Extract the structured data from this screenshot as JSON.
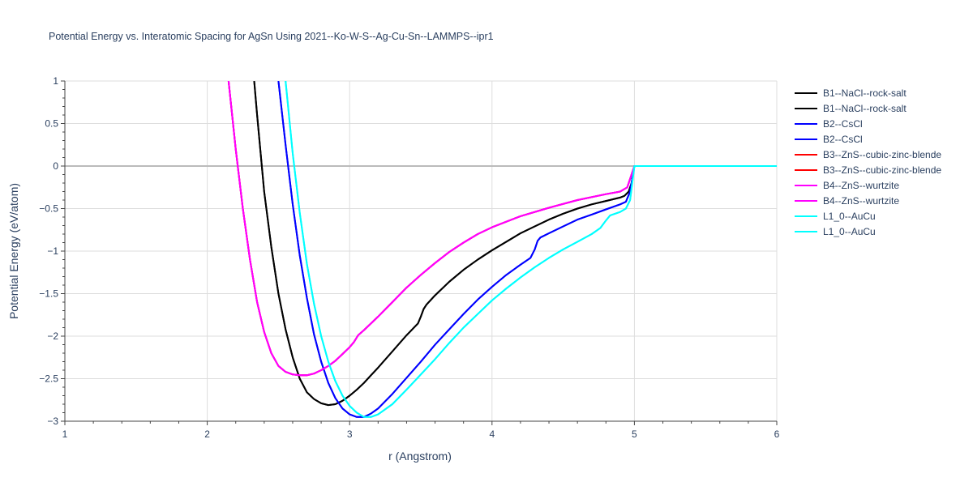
{
  "chart_data": {
    "type": "line",
    "title": "Potential Energy vs. Interatomic Spacing for AgSn Using 2021--Ko-W-S--Ag-Cu-Sn--LAMMPS--ipr1",
    "xlabel": "r (Angstrom)",
    "ylabel": "Potential Energy (eV/atom)",
    "xlim": [
      1,
      6
    ],
    "ylim": [
      -3,
      1
    ],
    "xticks": [
      1,
      2,
      3,
      4,
      5,
      6
    ],
    "yticks": [
      1,
      0.5,
      0,
      -0.5,
      -1,
      -1.5,
      -2,
      -2.5,
      -3
    ],
    "xtick_labels": [
      "1",
      "2",
      "3",
      "4",
      "5",
      "6"
    ],
    "ytick_labels": [
      "1",
      "0.5",
      "0",
      "−0.5",
      "−1",
      "−1.5",
      "−2",
      "−2.5",
      "−3"
    ],
    "grid": true,
    "legend_position": "right",
    "series": [
      {
        "name": "B1--NaCl--rock-salt",
        "color": "#000000",
        "x": [
          2.33,
          2.35,
          2.4,
          2.45,
          2.5,
          2.55,
          2.6,
          2.65,
          2.7,
          2.75,
          2.8,
          2.85,
          2.9,
          2.95,
          3.0,
          3.05,
          3.1,
          3.15,
          3.2,
          3.3,
          3.4,
          3.48,
          3.5,
          3.52,
          3.54,
          3.6,
          3.7,
          3.8,
          3.9,
          4.0,
          4.1,
          4.2,
          4.3,
          4.4,
          4.5,
          4.6,
          4.7,
          4.8,
          4.9,
          4.93,
          4.96,
          4.98,
          5.0,
          6.0
        ],
        "y": [
          1.0,
          0.6,
          -0.3,
          -0.95,
          -1.5,
          -1.92,
          -2.25,
          -2.5,
          -2.66,
          -2.74,
          -2.79,
          -2.81,
          -2.8,
          -2.76,
          -2.7,
          -2.63,
          -2.55,
          -2.46,
          -2.37,
          -2.18,
          -1.99,
          -1.85,
          -1.77,
          -1.68,
          -1.63,
          -1.52,
          -1.36,
          -1.22,
          -1.1,
          -0.99,
          -0.89,
          -0.79,
          -0.71,
          -0.63,
          -0.56,
          -0.5,
          -0.45,
          -0.41,
          -0.37,
          -0.35,
          -0.3,
          -0.2,
          0.0,
          0.0
        ]
      },
      {
        "name": "B1--NaCl--rock-salt",
        "color": "#000000",
        "x": [
          2.33,
          2.35,
          2.4,
          2.45,
          2.5,
          2.55,
          2.6,
          2.65,
          2.7,
          2.75,
          2.8,
          2.85,
          2.9,
          2.95,
          3.0,
          3.05,
          3.1,
          3.15,
          3.2,
          3.3,
          3.4,
          3.48,
          3.5,
          3.52,
          3.54,
          3.6,
          3.7,
          3.8,
          3.9,
          4.0,
          4.1,
          4.2,
          4.3,
          4.4,
          4.5,
          4.6,
          4.7,
          4.8,
          4.9,
          4.93,
          4.96,
          4.98,
          5.0,
          6.0
        ],
        "y": [
          1.0,
          0.6,
          -0.3,
          -0.95,
          -1.5,
          -1.92,
          -2.25,
          -2.5,
          -2.66,
          -2.74,
          -2.79,
          -2.81,
          -2.8,
          -2.76,
          -2.7,
          -2.63,
          -2.55,
          -2.46,
          -2.37,
          -2.18,
          -1.99,
          -1.85,
          -1.77,
          -1.68,
          -1.63,
          -1.52,
          -1.36,
          -1.22,
          -1.1,
          -0.99,
          -0.89,
          -0.79,
          -0.71,
          -0.63,
          -0.56,
          -0.5,
          -0.45,
          -0.41,
          -0.37,
          -0.35,
          -0.3,
          -0.2,
          0.0,
          0.0
        ]
      },
      {
        "name": "B2--CsCl",
        "color": "#0000ff",
        "x": [
          2.5,
          2.55,
          2.6,
          2.65,
          2.7,
          2.75,
          2.8,
          2.85,
          2.9,
          2.95,
          3.0,
          3.05,
          3.1,
          3.15,
          3.2,
          3.3,
          3.4,
          3.5,
          3.6,
          3.7,
          3.8,
          3.9,
          4.0,
          4.1,
          4.2,
          4.27,
          4.3,
          4.32,
          4.34,
          4.4,
          4.5,
          4.6,
          4.7,
          4.8,
          4.9,
          4.94,
          4.97,
          5.0,
          6.0
        ],
        "y": [
          1.0,
          0.25,
          -0.45,
          -1.05,
          -1.55,
          -1.98,
          -2.3,
          -2.55,
          -2.73,
          -2.85,
          -2.92,
          -2.95,
          -2.95,
          -2.91,
          -2.85,
          -2.68,
          -2.49,
          -2.3,
          -2.1,
          -1.92,
          -1.74,
          -1.57,
          -1.42,
          -1.28,
          -1.16,
          -1.08,
          -0.98,
          -0.88,
          -0.84,
          -0.79,
          -0.71,
          -0.63,
          -0.57,
          -0.51,
          -0.45,
          -0.42,
          -0.3,
          0.0,
          0.0
        ]
      },
      {
        "name": "B2--CsCl",
        "color": "#0000ff",
        "x": [
          2.5,
          2.55,
          2.6,
          2.65,
          2.7,
          2.75,
          2.8,
          2.85,
          2.9,
          2.95,
          3.0,
          3.05,
          3.1,
          3.15,
          3.2,
          3.3,
          3.4,
          3.5,
          3.6,
          3.7,
          3.8,
          3.9,
          4.0,
          4.1,
          4.2,
          4.27,
          4.3,
          4.32,
          4.34,
          4.4,
          4.5,
          4.6,
          4.7,
          4.8,
          4.9,
          4.94,
          4.97,
          5.0,
          6.0
        ],
        "y": [
          1.0,
          0.25,
          -0.45,
          -1.05,
          -1.55,
          -1.98,
          -2.3,
          -2.55,
          -2.73,
          -2.85,
          -2.92,
          -2.95,
          -2.95,
          -2.91,
          -2.85,
          -2.68,
          -2.49,
          -2.3,
          -2.1,
          -1.92,
          -1.74,
          -1.57,
          -1.42,
          -1.28,
          -1.16,
          -1.08,
          -0.98,
          -0.88,
          -0.84,
          -0.79,
          -0.71,
          -0.63,
          -0.57,
          -0.51,
          -0.45,
          -0.42,
          -0.3,
          0.0,
          0.0
        ]
      },
      {
        "name": "B3--ZnS--cubic-zinc-blende",
        "color": "#ff0000",
        "x": [
          2.15,
          2.2,
          2.25,
          2.3,
          2.35,
          2.4,
          2.45,
          2.5,
          2.55,
          2.6,
          2.65,
          2.7,
          2.75,
          2.8,
          2.85,
          2.9,
          2.95,
          3.0,
          3.03,
          3.06,
          3.1,
          3.2,
          3.3,
          3.4,
          3.5,
          3.6,
          3.7,
          3.8,
          3.9,
          4.0,
          4.2,
          4.4,
          4.6,
          4.8,
          4.9,
          4.95,
          5.0,
          6.0
        ],
        "y": [
          1.0,
          0.2,
          -0.5,
          -1.1,
          -1.6,
          -1.95,
          -2.2,
          -2.35,
          -2.42,
          -2.45,
          -2.46,
          -2.46,
          -2.44,
          -2.4,
          -2.35,
          -2.29,
          -2.21,
          -2.13,
          -2.07,
          -1.99,
          -1.93,
          -1.77,
          -1.6,
          -1.43,
          -1.28,
          -1.14,
          -1.01,
          -0.9,
          -0.8,
          -0.72,
          -0.59,
          -0.49,
          -0.4,
          -0.33,
          -0.3,
          -0.25,
          0.0,
          0.0
        ]
      },
      {
        "name": "B3--ZnS--cubic-zinc-blende",
        "color": "#ff0000",
        "x": [
          2.15,
          2.2,
          2.25,
          2.3,
          2.35,
          2.4,
          2.45,
          2.5,
          2.55,
          2.6,
          2.65,
          2.7,
          2.75,
          2.8,
          2.85,
          2.9,
          2.95,
          3.0,
          3.03,
          3.06,
          3.1,
          3.2,
          3.3,
          3.4,
          3.5,
          3.6,
          3.7,
          3.8,
          3.9,
          4.0,
          4.2,
          4.4,
          4.6,
          4.8,
          4.9,
          4.95,
          5.0,
          6.0
        ],
        "y": [
          1.0,
          0.2,
          -0.5,
          -1.1,
          -1.6,
          -1.95,
          -2.2,
          -2.35,
          -2.42,
          -2.45,
          -2.46,
          -2.46,
          -2.44,
          -2.4,
          -2.35,
          -2.29,
          -2.21,
          -2.13,
          -2.07,
          -1.99,
          -1.93,
          -1.77,
          -1.6,
          -1.43,
          -1.28,
          -1.14,
          -1.01,
          -0.9,
          -0.8,
          -0.72,
          -0.59,
          -0.49,
          -0.4,
          -0.33,
          -0.3,
          -0.25,
          0.0,
          0.0
        ]
      },
      {
        "name": "B4--ZnS--wurtzite",
        "color": "#ff00ff",
        "x": [
          2.15,
          2.2,
          2.25,
          2.3,
          2.35,
          2.4,
          2.45,
          2.5,
          2.55,
          2.6,
          2.65,
          2.7,
          2.75,
          2.8,
          2.85,
          2.9,
          2.95,
          3.0,
          3.03,
          3.06,
          3.1,
          3.2,
          3.3,
          3.4,
          3.5,
          3.6,
          3.7,
          3.8,
          3.9,
          4.0,
          4.2,
          4.4,
          4.6,
          4.8,
          4.9,
          4.95,
          5.0,
          6.0
        ],
        "y": [
          1.0,
          0.2,
          -0.5,
          -1.1,
          -1.6,
          -1.95,
          -2.2,
          -2.35,
          -2.42,
          -2.45,
          -2.46,
          -2.46,
          -2.44,
          -2.4,
          -2.35,
          -2.29,
          -2.21,
          -2.13,
          -2.07,
          -1.99,
          -1.93,
          -1.77,
          -1.6,
          -1.43,
          -1.28,
          -1.14,
          -1.01,
          -0.9,
          -0.8,
          -0.72,
          -0.59,
          -0.49,
          -0.4,
          -0.33,
          -0.3,
          -0.25,
          0.0,
          0.0
        ]
      },
      {
        "name": "B4--ZnS--wurtzite",
        "color": "#ff00ff",
        "x": [
          2.15,
          2.2,
          2.25,
          2.3,
          2.35,
          2.4,
          2.45,
          2.5,
          2.55,
          2.6,
          2.65,
          2.7,
          2.75,
          2.8,
          2.85,
          2.9,
          2.95,
          3.0,
          3.03,
          3.06,
          3.1,
          3.2,
          3.3,
          3.4,
          3.5,
          3.6,
          3.7,
          3.8,
          3.9,
          4.0,
          4.2,
          4.4,
          4.6,
          4.8,
          4.9,
          4.95,
          5.0,
          6.0
        ],
        "y": [
          1.0,
          0.2,
          -0.5,
          -1.1,
          -1.6,
          -1.95,
          -2.2,
          -2.35,
          -2.42,
          -2.45,
          -2.46,
          -2.46,
          -2.44,
          -2.4,
          -2.35,
          -2.29,
          -2.21,
          -2.13,
          -2.07,
          -1.99,
          -1.93,
          -1.77,
          -1.6,
          -1.43,
          -1.28,
          -1.14,
          -1.01,
          -0.9,
          -0.8,
          -0.72,
          -0.59,
          -0.49,
          -0.4,
          -0.33,
          -0.3,
          -0.25,
          0.0,
          0.0
        ]
      },
      {
        "name": "L1_0--AuCu",
        "color": "#00ffff",
        "x": [
          2.55,
          2.6,
          2.65,
          2.7,
          2.75,
          2.8,
          2.85,
          2.9,
          2.95,
          3.0,
          3.05,
          3.1,
          3.15,
          3.2,
          3.3,
          3.4,
          3.5,
          3.6,
          3.7,
          3.8,
          3.9,
          4.0,
          4.1,
          4.2,
          4.3,
          4.4,
          4.5,
          4.6,
          4.7,
          4.76,
          4.8,
          4.83,
          4.9,
          4.94,
          4.97,
          5.0,
          6.0
        ],
        "y": [
          1.0,
          0.15,
          -0.55,
          -1.15,
          -1.62,
          -2.0,
          -2.3,
          -2.53,
          -2.7,
          -2.82,
          -2.9,
          -2.95,
          -2.95,
          -2.92,
          -2.8,
          -2.63,
          -2.45,
          -2.27,
          -2.08,
          -1.9,
          -1.74,
          -1.58,
          -1.44,
          -1.31,
          -1.19,
          -1.08,
          -0.98,
          -0.89,
          -0.8,
          -0.73,
          -0.64,
          -0.58,
          -0.54,
          -0.5,
          -0.4,
          0.0,
          0.0
        ]
      },
      {
        "name": "L1_0--AuCu",
        "color": "#00ffff",
        "x": [
          2.55,
          2.6,
          2.65,
          2.7,
          2.75,
          2.8,
          2.85,
          2.9,
          2.95,
          3.0,
          3.05,
          3.1,
          3.15,
          3.2,
          3.3,
          3.4,
          3.5,
          3.6,
          3.7,
          3.8,
          3.9,
          4.0,
          4.1,
          4.2,
          4.3,
          4.4,
          4.5,
          4.6,
          4.7,
          4.76,
          4.8,
          4.83,
          4.9,
          4.94,
          4.97,
          5.0,
          6.0
        ],
        "y": [
          1.0,
          0.15,
          -0.55,
          -1.15,
          -1.62,
          -2.0,
          -2.3,
          -2.53,
          -2.7,
          -2.82,
          -2.9,
          -2.95,
          -2.95,
          -2.92,
          -2.8,
          -2.63,
          -2.45,
          -2.27,
          -2.08,
          -1.9,
          -1.74,
          -1.58,
          -1.44,
          -1.31,
          -1.19,
          -1.08,
          -0.98,
          -0.89,
          -0.8,
          -0.73,
          -0.64,
          -0.58,
          -0.54,
          -0.5,
          -0.4,
          0.0,
          0.0
        ]
      }
    ]
  }
}
